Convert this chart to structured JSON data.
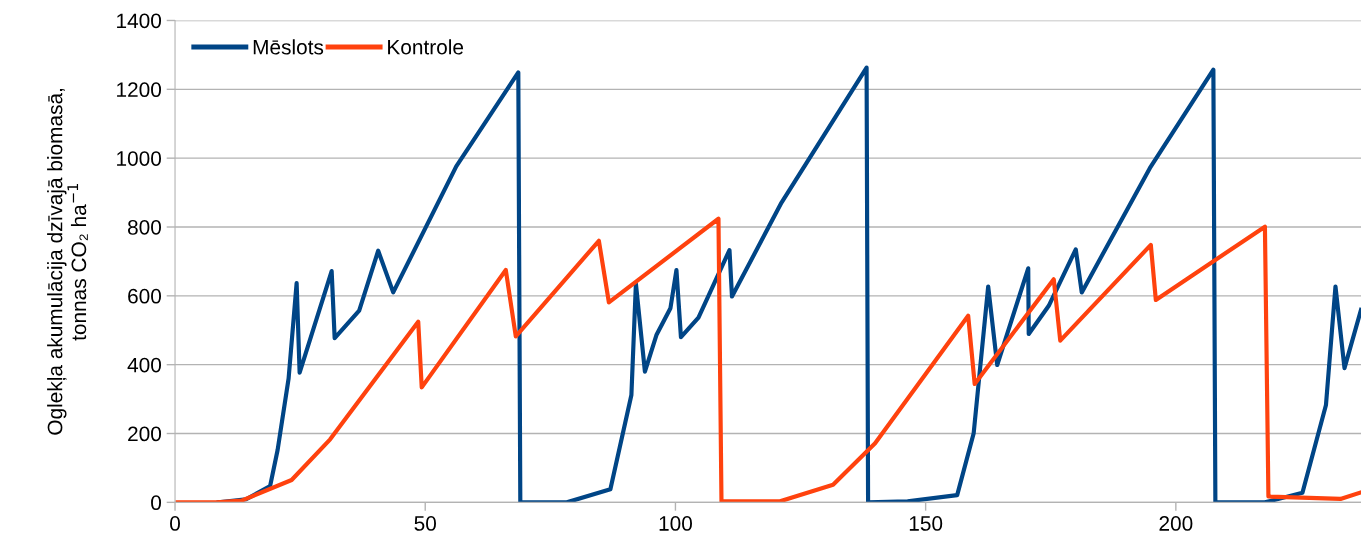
{
  "chart_data": {
    "type": "line",
    "ylabel": "Oglekļa akumulācija dzīvajā biomasā,\ntonnas CO₂ ha$^{−1}$",
    "series": [
      {
        "name": "Mēslots",
        "color": "#004586",
        "x": [
          8.7,
          14.2,
          19.0,
          20.5,
          22.7,
          24.3,
          24.9,
          31.3,
          31.9,
          36.8,
          40.6,
          43.6,
          56.2,
          68.6,
          69.0,
          78.3,
          87.0,
          91.2,
          92.1,
          93.9,
          96.2,
          99.0,
          100.2,
          101.1,
          104.6,
          110.8,
          111.3,
          121.2,
          138.2,
          138.5,
          146.4,
          156.3,
          159.6,
          162.5,
          164.3,
          170.5,
          170.6,
          174.6,
          180.0,
          181.2,
          194.8,
          207.5,
          207.9,
          217.8,
          225.3,
          230.0,
          231.9,
          233.7,
          237.0
        ],
        "values": [
          0,
          9,
          47,
          152,
          360,
          637,
          377,
          672,
          477,
          557,
          731,
          610,
          976,
          1249,
          0,
          0,
          38,
          312,
          635,
          380,
          486,
          564,
          675,
          480,
          537,
          733,
          598,
          871,
          1263,
          0,
          3,
          21,
          201,
          627,
          399,
          680,
          489,
          571,
          735,
          610,
          971,
          1257,
          0,
          0,
          28,
          283,
          627,
          390,
          559
        ]
      },
      {
        "name": "Kontrole",
        "color": "#ff420e",
        "x": [
          0.5,
          8.3,
          13.3,
          23.3,
          31.0,
          48.6,
          49.3,
          66.1,
          68.1,
          84.7,
          86.7,
          108.6,
          109.2,
          120.9,
          131.5,
          139.9,
          158.5,
          159.8,
          175.6,
          176.9,
          195.0,
          196.0,
          217.8,
          218.5,
          232.9,
          237.0
        ],
        "values": [
          0,
          0,
          5,
          65,
          183,
          525,
          334,
          675,
          482,
          760,
          581,
          824,
          3,
          3,
          51,
          172,
          542,
          344,
          648,
          470,
          748,
          588,
          801,
          17,
          10,
          29
        ]
      }
    ],
    "xlim": [
      0,
      237
    ],
    "xticks": [
      0,
      50,
      100,
      150,
      200
    ],
    "ylim": [
      0,
      1400
    ],
    "yticks": [
      0,
      200,
      400,
      600,
      800,
      1000,
      1200,
      1400
    ],
    "grid": "y",
    "legend": "top left",
    "marker": "none",
    "line_style": "solid"
  }
}
